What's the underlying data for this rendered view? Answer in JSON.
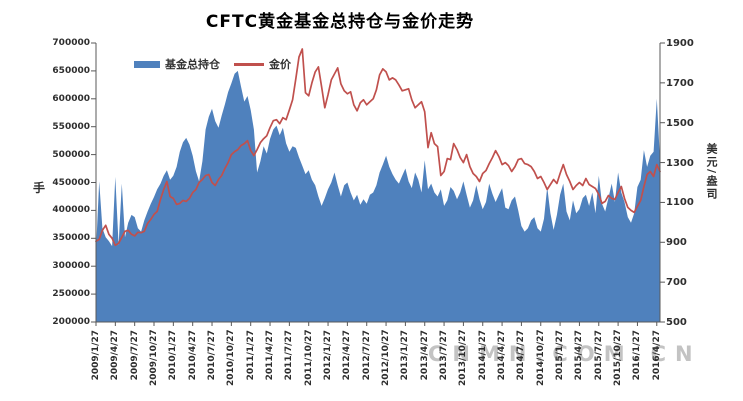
{
  "watermark": "CNMN.COM.CN",
  "colors": {
    "holdings_area": "#4f81bd",
    "price_line": "#c0504d",
    "axis_line": "#7f7f7f",
    "tick_text": "#2e2e2e",
    "watermark": "#c3c3c3"
  },
  "chart_data": {
    "type": "area",
    "title": "CFTC黄金基金总持仓与金价走势",
    "legend_position": "top",
    "grid": false,
    "left_axis": {
      "label": "手",
      "min": 200000,
      "max": 700000,
      "step": 50000
    },
    "right_axis": {
      "label": "美元/盎司",
      "min": 500,
      "max": 1900,
      "step": 200
    },
    "left_ticks": [
      "700000",
      "650000",
      "600000",
      "550000",
      "500000",
      "450000",
      "400000",
      "350000",
      "300000",
      "250000",
      "200000"
    ],
    "right_ticks": [
      "1900",
      "1700",
      "1500",
      "1300",
      "1100",
      "900",
      "700",
      "500"
    ],
    "x_labels": [
      "2009/1/27",
      "2009/4/27",
      "2009/7/27",
      "2009/10/27",
      "2010/1/27",
      "2010/4/27",
      "2010/7/27",
      "2010/10/27",
      "2011/1/27",
      "2011/4/27",
      "2011/7/27",
      "2011/10/27",
      "2012/1/27",
      "2012/4/27",
      "2012/7/27",
      "2012/10/27",
      "2013/1/27",
      "2013/4/27",
      "2013/7/27",
      "2013/10/27",
      "2014/1/27",
      "2014/4/27",
      "2014/7/27",
      "2014/10/27",
      "2015/1/27",
      "2015/4/27",
      "2015/7/27",
      "2015/10/27",
      "2016/1/27",
      "2016/4/27"
    ],
    "x_start": "2009/1/27",
    "x_end": "2016/4/27",
    "points_per_month": 2,
    "series": [
      {
        "name": "基金总持仓",
        "type": "area",
        "axis": "left",
        "color": "#4f81bd",
        "values": [
          328000,
          452000,
          368000,
          352000,
          345000,
          336000,
          460000,
          338000,
          448000,
          352000,
          378000,
          392000,
          388000,
          368000,
          362000,
          382000,
          398000,
          412000,
          424000,
          438000,
          448000,
          462000,
          472000,
          455000,
          462000,
          478000,
          505000,
          522000,
          530000,
          518000,
          498000,
          470000,
          452000,
          488000,
          545000,
          568000,
          582000,
          560000,
          548000,
          570000,
          590000,
          612000,
          628000,
          645000,
          650000,
          622000,
          595000,
          605000,
          580000,
          545000,
          468000,
          488000,
          515000,
          502000,
          528000,
          545000,
          552000,
          535000,
          548000,
          520000,
          505000,
          515000,
          512000,
          495000,
          480000,
          465000,
          472000,
          455000,
          445000,
          425000,
          408000,
          422000,
          438000,
          450000,
          468000,
          445000,
          425000,
          445000,
          450000,
          432000,
          418000,
          428000,
          410000,
          420000,
          412000,
          428000,
          432000,
          445000,
          468000,
          482000,
          498000,
          478000,
          465000,
          455000,
          448000,
          462000,
          475000,
          452000,
          440000,
          468000,
          455000,
          432000,
          490000,
          438000,
          448000,
          432000,
          425000,
          438000,
          408000,
          418000,
          442000,
          435000,
          420000,
          432000,
          452000,
          428000,
          405000,
          418000,
          445000,
          420000,
          402000,
          415000,
          448000,
          430000,
          415000,
          428000,
          440000,
          405000,
          402000,
          418000,
          425000,
          400000,
          372000,
          362000,
          368000,
          382000,
          388000,
          368000,
          362000,
          385000,
          442000,
          395000,
          365000,
          392000,
          428000,
          448000,
          398000,
          382000,
          418000,
          395000,
          402000,
          422000,
          428000,
          408000,
          432000,
          395000,
          462000,
          412000,
          398000,
          422000,
          448000,
          415000,
          468000,
          432000,
          415000,
          388000,
          378000,
          395000,
          442000,
          455000,
          508000,
          478000,
          498000,
          505000,
          600000,
          490000
        ]
      },
      {
        "name": "金价",
        "type": "line",
        "axis": "right",
        "color": "#c0504d",
        "values": [
          905,
          915,
          960,
          985,
          940,
          920,
          885,
          895,
          925,
          955,
          960,
          940,
          932,
          950,
          948,
          955,
          995,
          1015,
          1040,
          1055,
          1115,
          1165,
          1205,
          1130,
          1120,
          1090,
          1095,
          1110,
          1105,
          1120,
          1150,
          1165,
          1200,
          1215,
          1235,
          1240,
          1200,
          1185,
          1215,
          1235,
          1270,
          1300,
          1340,
          1355,
          1365,
          1385,
          1395,
          1410,
          1360,
          1335,
          1365,
          1400,
          1420,
          1435,
          1475,
          1510,
          1515,
          1495,
          1525,
          1515,
          1565,
          1615,
          1720,
          1830,
          1870,
          1650,
          1635,
          1700,
          1755,
          1780,
          1680,
          1575,
          1640,
          1715,
          1745,
          1775,
          1695,
          1660,
          1645,
          1655,
          1590,
          1560,
          1600,
          1615,
          1590,
          1605,
          1620,
          1665,
          1740,
          1770,
          1755,
          1715,
          1725,
          1715,
          1690,
          1660,
          1665,
          1670,
          1615,
          1575,
          1590,
          1605,
          1555,
          1375,
          1450,
          1395,
          1380,
          1235,
          1255,
          1320,
          1315,
          1395,
          1365,
          1325,
          1300,
          1340,
          1280,
          1245,
          1230,
          1205,
          1245,
          1260,
          1295,
          1325,
          1360,
          1330,
          1290,
          1300,
          1285,
          1255,
          1280,
          1315,
          1320,
          1295,
          1290,
          1280,
          1255,
          1220,
          1230,
          1200,
          1165,
          1190,
          1215,
          1195,
          1245,
          1290,
          1240,
          1205,
          1165,
          1185,
          1200,
          1185,
          1220,
          1190,
          1180,
          1170,
          1140,
          1095,
          1105,
          1135,
          1120,
          1115,
          1150,
          1180,
          1120,
          1075,
          1060,
          1050,
          1080,
          1110,
          1180,
          1240,
          1255,
          1230,
          1290,
          1255
        ]
      }
    ]
  }
}
